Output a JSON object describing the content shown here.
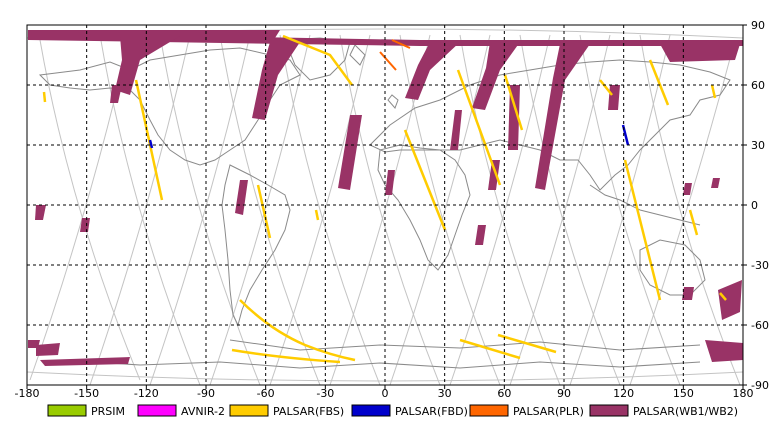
{
  "x_ticks": [
    "-180",
    "-150",
    "-120",
    "-90",
    "-60",
    "-30",
    "0",
    "30",
    "60",
    "90",
    "120",
    "150",
    "180"
  ],
  "y_ticks": [
    "90",
    "60",
    "30",
    "0",
    "-30",
    "-60",
    "-90"
  ],
  "map": {
    "lon_range": [
      -180,
      180
    ],
    "lat_range": [
      -90,
      90
    ],
    "grid": true,
    "grid_step_deg": 30,
    "ocean_color": "#ffffff",
    "coast_color": "#8a8a8a",
    "orbit_color": "#bdbdbd"
  },
  "legend": [
    {
      "label": "PRSIM",
      "color": "#99cc00"
    },
    {
      "label": "AVNIR-2",
      "color": "#ff00ff"
    },
    {
      "label": "PALSAR(FBS)",
      "color": "#ffcc00"
    },
    {
      "label": "PALSAR(FBD)",
      "color": "#0000cc"
    },
    {
      "label": "PALSAR(PLR)",
      "color": "#ff6600"
    },
    {
      "label": "PALSAR(WB1/WB2)",
      "color": "#993366"
    }
  ]
}
